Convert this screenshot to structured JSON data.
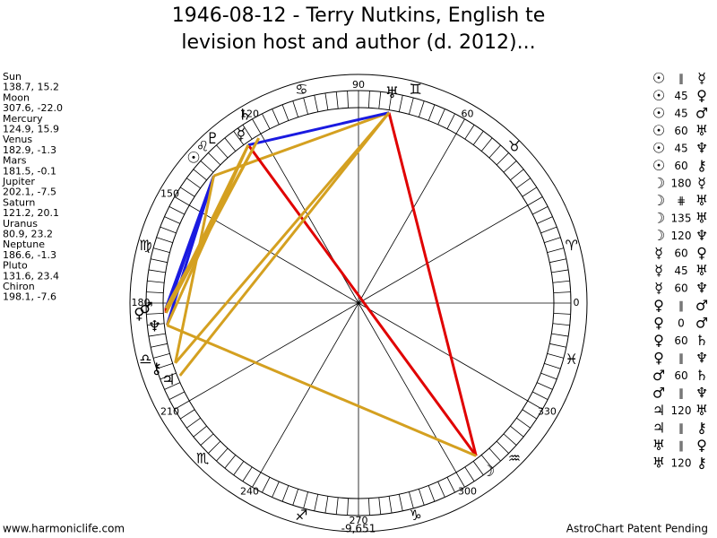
{
  "header": {
    "title_lines": [
      "1946-08-12 - Terry Nutkins, English te",
      "levision host and author (d. 2012)..."
    ]
  },
  "planets": [
    {
      "name": "Sun",
      "glyph": "☉",
      "coords": "138.7, 15.2"
    },
    {
      "name": "Moon",
      "glyph": "☽",
      "coords": "307.6, -22.0"
    },
    {
      "name": "Mercury",
      "glyph": "☿",
      "coords": "124.9, 15.9"
    },
    {
      "name": "Venus",
      "glyph": "♀",
      "coords": "182.9, -1.3"
    },
    {
      "name": "Mars",
      "glyph": "♂",
      "coords": "181.5, -0.1"
    },
    {
      "name": "Jupiter",
      "glyph": "♃",
      "coords": "202.1, -7.5"
    },
    {
      "name": "Saturn",
      "glyph": "♄",
      "coords": "121.2, 20.1"
    },
    {
      "name": "Uranus",
      "glyph": "♅",
      "coords": "80.9, 23.2"
    },
    {
      "name": "Neptune",
      "glyph": "♆",
      "coords": "186.6, -1.3"
    },
    {
      "name": "Pluto",
      "glyph": "♇",
      "coords": "131.6, 23.4"
    },
    {
      "name": "Chiron",
      "glyph": "⚷",
      "coords": "198.1, -7.6"
    }
  ],
  "signs": [
    "♈",
    "♉",
    "♊",
    "♋",
    "♌",
    "♍",
    "♎",
    "♏",
    "♐",
    "♑",
    "♒",
    "♓"
  ],
  "degree_labels": [
    0,
    60,
    90,
    120,
    150,
    180,
    210,
    240,
    270,
    300,
    330
  ],
  "aspect_colors": {
    "0": "#e00000",
    "45": "#1a1ae0",
    "60": "#d4a020",
    "120": "#d4a020",
    "135": "#e00000",
    "180": "#e00000"
  },
  "aspects": [
    [
      "☉",
      "∥",
      "☿"
    ],
    [
      "☉",
      "45",
      "♀"
    ],
    [
      "☉",
      "45",
      "♂"
    ],
    [
      "☉",
      "60",
      "♅"
    ],
    [
      "☉",
      "45",
      "♆"
    ],
    [
      "☉",
      "60",
      "⚷"
    ],
    [
      "☽",
      "180",
      "☿"
    ],
    [
      "☽",
      "⋕",
      "♅"
    ],
    [
      "☽",
      "135",
      "♅"
    ],
    [
      "☽",
      "120",
      "♆"
    ],
    [
      "☿",
      "60",
      "♀"
    ],
    [
      "☿",
      "45",
      "♅"
    ],
    [
      "☿",
      "60",
      "♆"
    ],
    [
      "♀",
      "∥",
      "♂"
    ],
    [
      "♀",
      "0",
      "♂"
    ],
    [
      "♀",
      "60",
      "♄"
    ],
    [
      "♀",
      "∥",
      "♆"
    ],
    [
      "♂",
      "60",
      "♄"
    ],
    [
      "♂",
      "∥",
      "♆"
    ],
    [
      "♃",
      "120",
      "♅"
    ],
    [
      "♃",
      "∥",
      "⚷"
    ],
    [
      "♅",
      "∥",
      "♀"
    ],
    [
      "♅",
      "120",
      "⚷"
    ]
  ],
  "footer": {
    "left": "www.harmoniclife.com",
    "center": "-9,651",
    "right": "AstroChart Patent Pending"
  }
}
